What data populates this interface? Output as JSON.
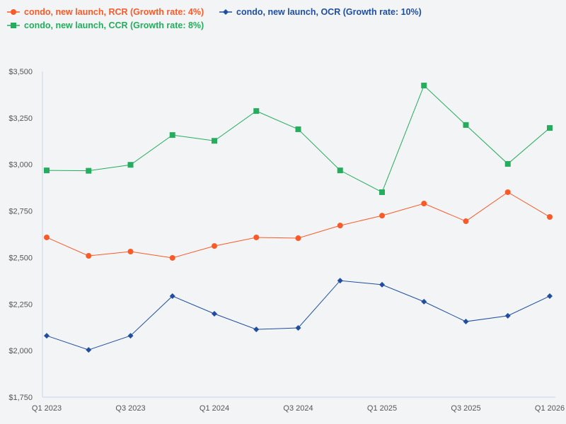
{
  "chart_data": {
    "type": "line",
    "title": "",
    "xlabel": "",
    "ylabel": "",
    "categories": [
      "Q1 2023",
      "Q2 2023",
      "Q3 2023",
      "Q4 2023",
      "Q1 2024",
      "Q2 2024",
      "Q3 2024",
      "Q4 2024",
      "Q1 2025",
      "Q2 2025",
      "Q3 2025",
      "Q4 2025",
      "Q1 2026"
    ],
    "x_tick_labels": [
      "Q1 2023",
      "Q3 2023",
      "Q1 2024",
      "Q3 2024",
      "Q1 2025",
      "Q3 2025",
      "Q1 2026"
    ],
    "y_tick_labels": [
      "$1,750",
      "$2,000",
      "$2,250",
      "$2,500",
      "$2,750",
      "$3,000",
      "$3,250",
      "$3,500"
    ],
    "ylim": [
      1750,
      3500
    ],
    "grid": false,
    "legend_position": "top-left",
    "series": [
      {
        "name": "condo, new launch, RCR (Growth rate: 4%)",
        "color": "#fa5a28",
        "marker": "circle",
        "values": [
          2608,
          2509,
          2532,
          2498,
          2562,
          2608,
          2604,
          2672,
          2725,
          2790,
          2695,
          2851,
          2718
        ]
      },
      {
        "name": "condo, new launch, OCR (Growth rate: 10%)",
        "color": "#1f4e9e",
        "marker": "diamond",
        "values": [
          2080,
          2004,
          2080,
          2293,
          2198,
          2114,
          2122,
          2376,
          2354,
          2263,
          2156,
          2187,
          2293
        ]
      },
      {
        "name": "condo, new launch, CCR (Growth rate: 8%)",
        "color": "#23ad5c",
        "marker": "square",
        "values": [
          2968,
          2966,
          2998,
          3158,
          3127,
          3287,
          3189,
          2968,
          2851,
          3424,
          3212,
          3003,
          3196
        ]
      }
    ]
  }
}
